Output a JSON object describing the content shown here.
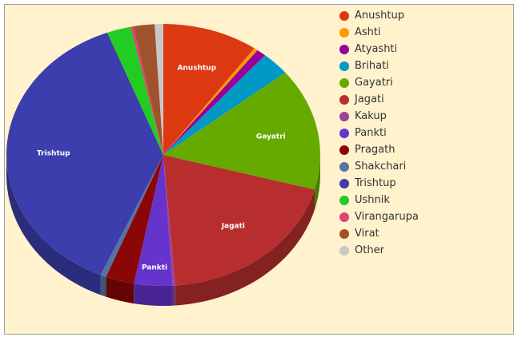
{
  "chart_data": {
    "type": "pie",
    "style": "3d",
    "series": [
      {
        "name": "Anushtup",
        "value": 10.0,
        "color": "#dc3912",
        "label_shown": true
      },
      {
        "name": "Ashti",
        "value": 0.4,
        "color": "#ff9900",
        "label_shown": false
      },
      {
        "name": "Atyashti",
        "value": 1.0,
        "color": "#990099",
        "label_shown": false
      },
      {
        "name": "Brihati",
        "value": 3.0,
        "color": "#0099c6",
        "label_shown": false
      },
      {
        "name": "Gayatri",
        "value": 15.3,
        "color": "#66aa00",
        "label_shown": true
      },
      {
        "name": "Jagati",
        "value": 19.8,
        "color": "#b82e2e",
        "label_shown": true
      },
      {
        "name": "Kakup",
        "value": 0.3,
        "color": "#994499",
        "label_shown": false
      },
      {
        "name": "Pankti",
        "value": 4.0,
        "color": "#6633cc",
        "label_shown": true
      },
      {
        "name": "Pragath",
        "value": 3.0,
        "color": "#8b0707",
        "label_shown": false
      },
      {
        "name": "Shakchari",
        "value": 0.6,
        "color": "#5574a6",
        "label_shown": false
      },
      {
        "name": "Trishtup",
        "value": 38.2,
        "color": "#3b3eac",
        "label_shown": true
      },
      {
        "name": "Ushnik",
        "value": 2.5,
        "color": "#22cc22",
        "label_shown": false
      },
      {
        "name": "Virangarupa",
        "value": 0.3,
        "color": "#dd4477",
        "label_shown": false
      },
      {
        "name": "Virat",
        "value": 2.2,
        "color": "#a0522d",
        "label_shown": false
      },
      {
        "name": "Other",
        "value": 0.9,
        "color": "#c8c8c8",
        "label_shown": false
      }
    ],
    "legend_position": "right"
  },
  "colors": {
    "background": "#fff2cc",
    "border": "#a0a0a0",
    "legend_text": "#333333",
    "slice_label": "#ffffff"
  }
}
